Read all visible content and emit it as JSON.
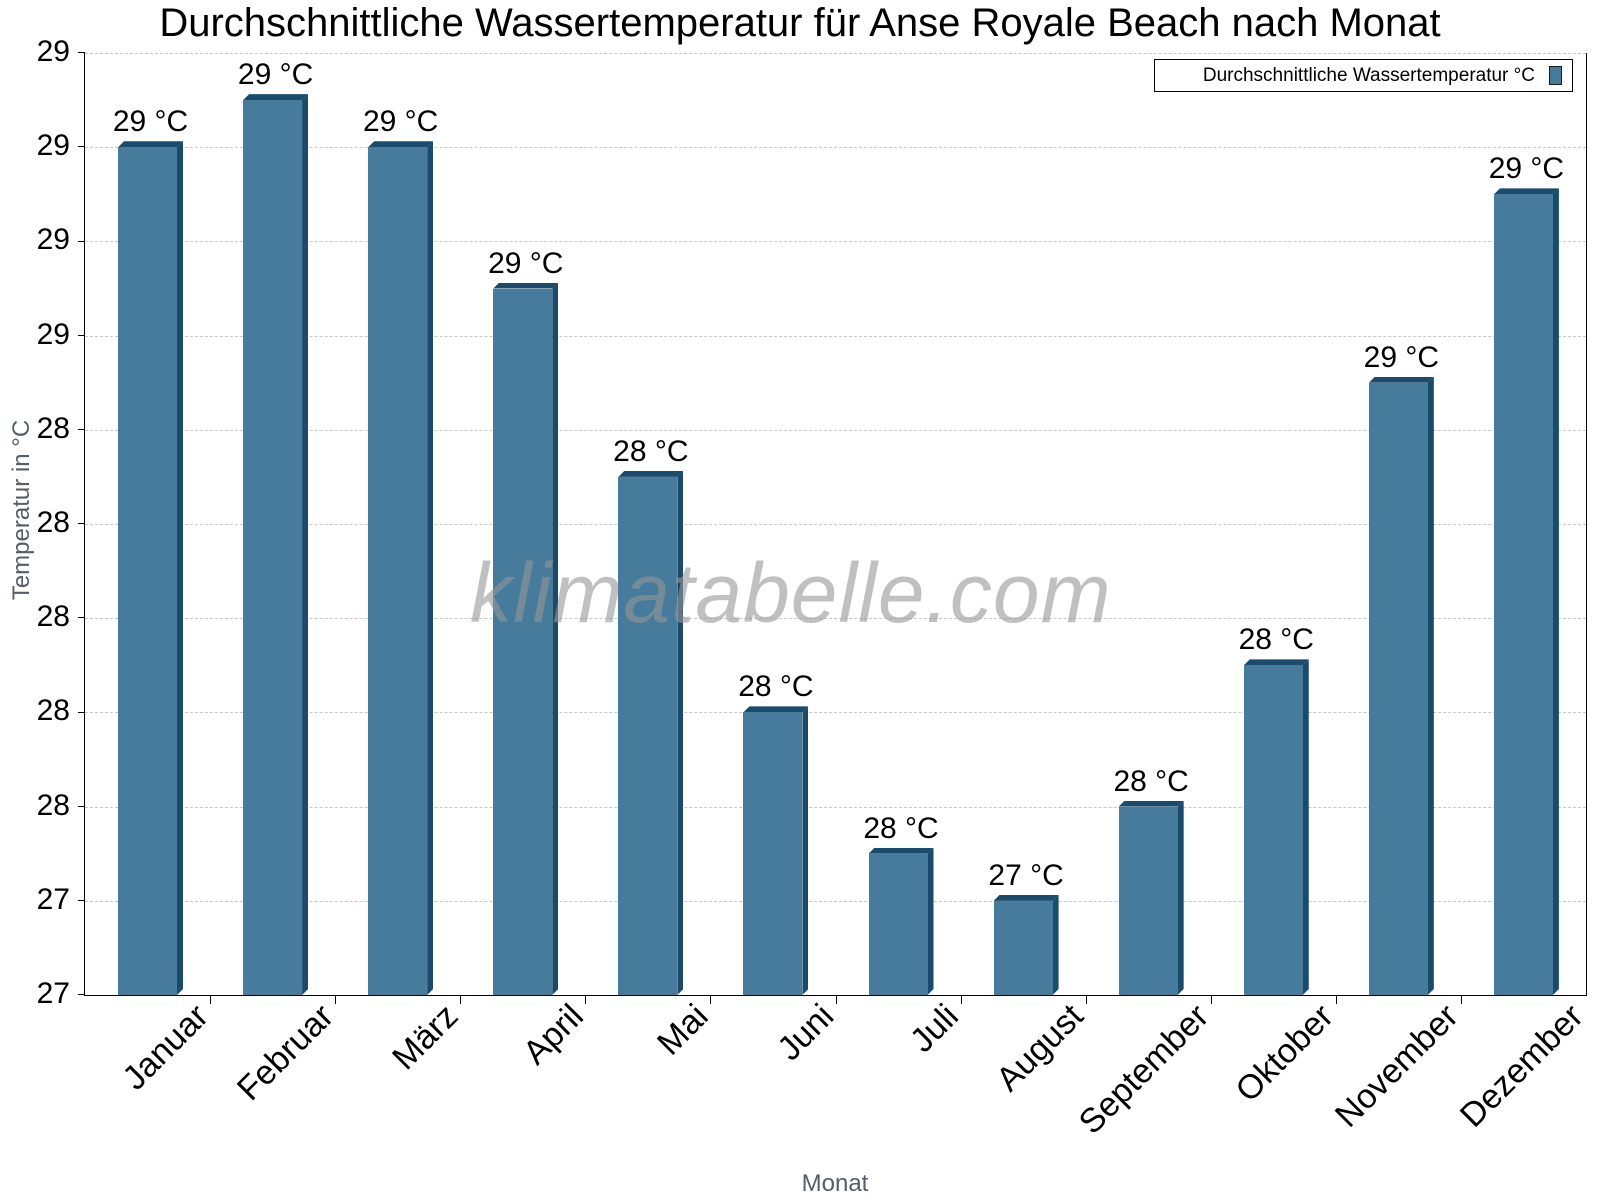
{
  "title": "Durchschnittliche Wassertemperatur für Anse Royale Beach nach Monat",
  "watermark": "klimatabelle.com",
  "legend": {
    "label": "Durchschnittliche Wassertemperatur °C",
    "color": "#467b9c"
  },
  "axes": {
    "x_title": "Monat",
    "y_title": "Temperatur in °C",
    "y_tick_labels": [
      "27",
      "27",
      "28",
      "28",
      "28",
      "28",
      "28",
      "29",
      "29",
      "29",
      "29"
    ]
  },
  "colors": {
    "bar_front": "#467b9c",
    "bar_side": "#1a4b6c",
    "grid": "#c8c8c8"
  },
  "chart_data": {
    "type": "bar",
    "title": "Durchschnittliche Wassertemperatur für Anse Royale Beach nach Monat",
    "xlabel": "Monat",
    "ylabel": "Temperatur in °C",
    "categories": [
      "Januar",
      "Februar",
      "März",
      "April",
      "Mai",
      "Juni",
      "Juli",
      "August",
      "September",
      "Oktober",
      "November",
      "Dezember"
    ],
    "series": [
      {
        "name": "Durchschnittliche Wassertemperatur °C",
        "values": [
          29.0,
          29.1,
          29.0,
          28.7,
          28.3,
          27.8,
          27.5,
          27.4,
          27.6,
          27.9,
          28.5,
          28.9
        ],
        "labels": [
          "29 °C",
          "29 °C",
          "29 °C",
          "29 °C",
          "28 °C",
          "28 °C",
          "28 °C",
          "27 °C",
          "28 °C",
          "28 °C",
          "29 °C",
          "29 °C"
        ]
      }
    ],
    "ylim": [
      27.2,
      29.2
    ],
    "y_tick_step": 0.2,
    "grid": true,
    "legend_position": "top-right"
  }
}
